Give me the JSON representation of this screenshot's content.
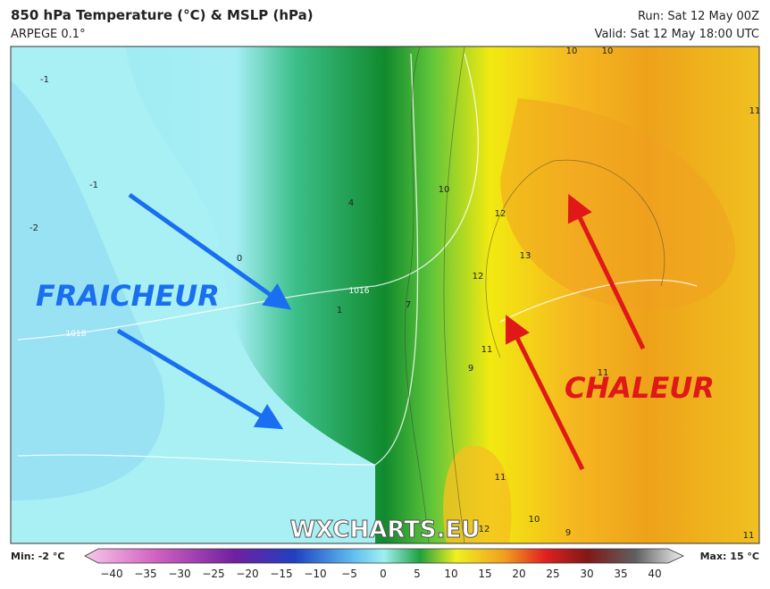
{
  "header": {
    "title": "850 hPa Temperature (°C) & MSLP (hPa)",
    "model": "ARPEGE 0.1°",
    "run": "Run: Sat 12 May 00Z",
    "valid": "Valid: Sat 12 May 18:00 UTC"
  },
  "map": {
    "annotations": [
      "FRAICHEUR",
      "CHALEUR"
    ],
    "watermark": "WXCHARTS.EU",
    "contour_labels": [
      "-1",
      "-1",
      "-2",
      "0",
      "1",
      "4",
      "7",
      "10",
      "10",
      "10",
      "12",
      "13",
      "12",
      "11",
      "9",
      "11",
      "11",
      "10",
      "9",
      "12",
      "11",
      "11",
      "1016",
      "1018"
    ]
  },
  "legend": {
    "min": "Min: -2 °C",
    "max": "Max: 15 °C",
    "ticks": [
      "−40",
      "−35",
      "−30",
      "−25",
      "−20",
      "−15",
      "−10",
      "−5",
      "0",
      "5",
      "10",
      "15",
      "20",
      "25",
      "30",
      "35",
      "40"
    ]
  }
}
